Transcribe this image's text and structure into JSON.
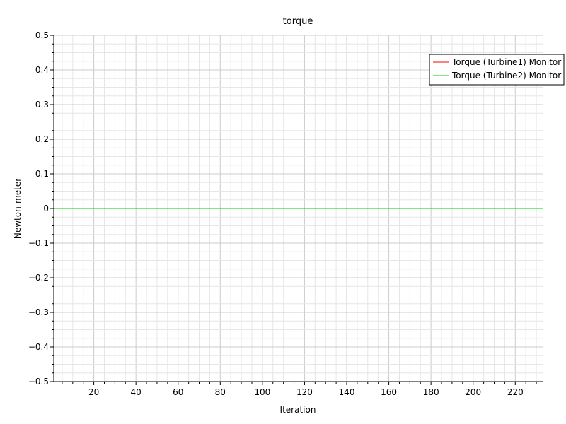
{
  "chart_data": {
    "type": "line",
    "title": "torque",
    "xlabel": "Iteration",
    "ylabel": "Newton-meter",
    "xlim": [
      1,
      233
    ],
    "ylim": [
      -0.5,
      0.5
    ],
    "x_ticks": [
      20,
      40,
      60,
      80,
      100,
      120,
      140,
      160,
      180,
      200,
      220
    ],
    "x_tick_labels": [
      "20",
      "40",
      "60",
      "80",
      "100",
      "120",
      "140",
      "160",
      "180",
      "200",
      "220"
    ],
    "y_ticks": [
      0.5,
      0.4,
      0.3,
      0.2,
      0.1,
      0,
      -0.1,
      -0.2,
      -0.3,
      -0.4,
      -0.5
    ],
    "y_tick_labels": [
      "0.5",
      "0.4",
      "0.3",
      "0.2",
      "0.1",
      "0",
      "−0.1",
      "−0.2",
      "−0.3",
      "−0.4",
      "−0.5"
    ],
    "grid": true,
    "legend_position": "top-right",
    "series": [
      {
        "name": "Torque (Turbine1) Monitor",
        "color": "#ff0000",
        "x": [
          1,
          233
        ],
        "y": [
          0,
          0
        ]
      },
      {
        "name": "Torque (Turbine2) Monitor",
        "color": "#00d000",
        "x": [
          1,
          233
        ],
        "y": [
          0,
          0
        ]
      }
    ]
  }
}
